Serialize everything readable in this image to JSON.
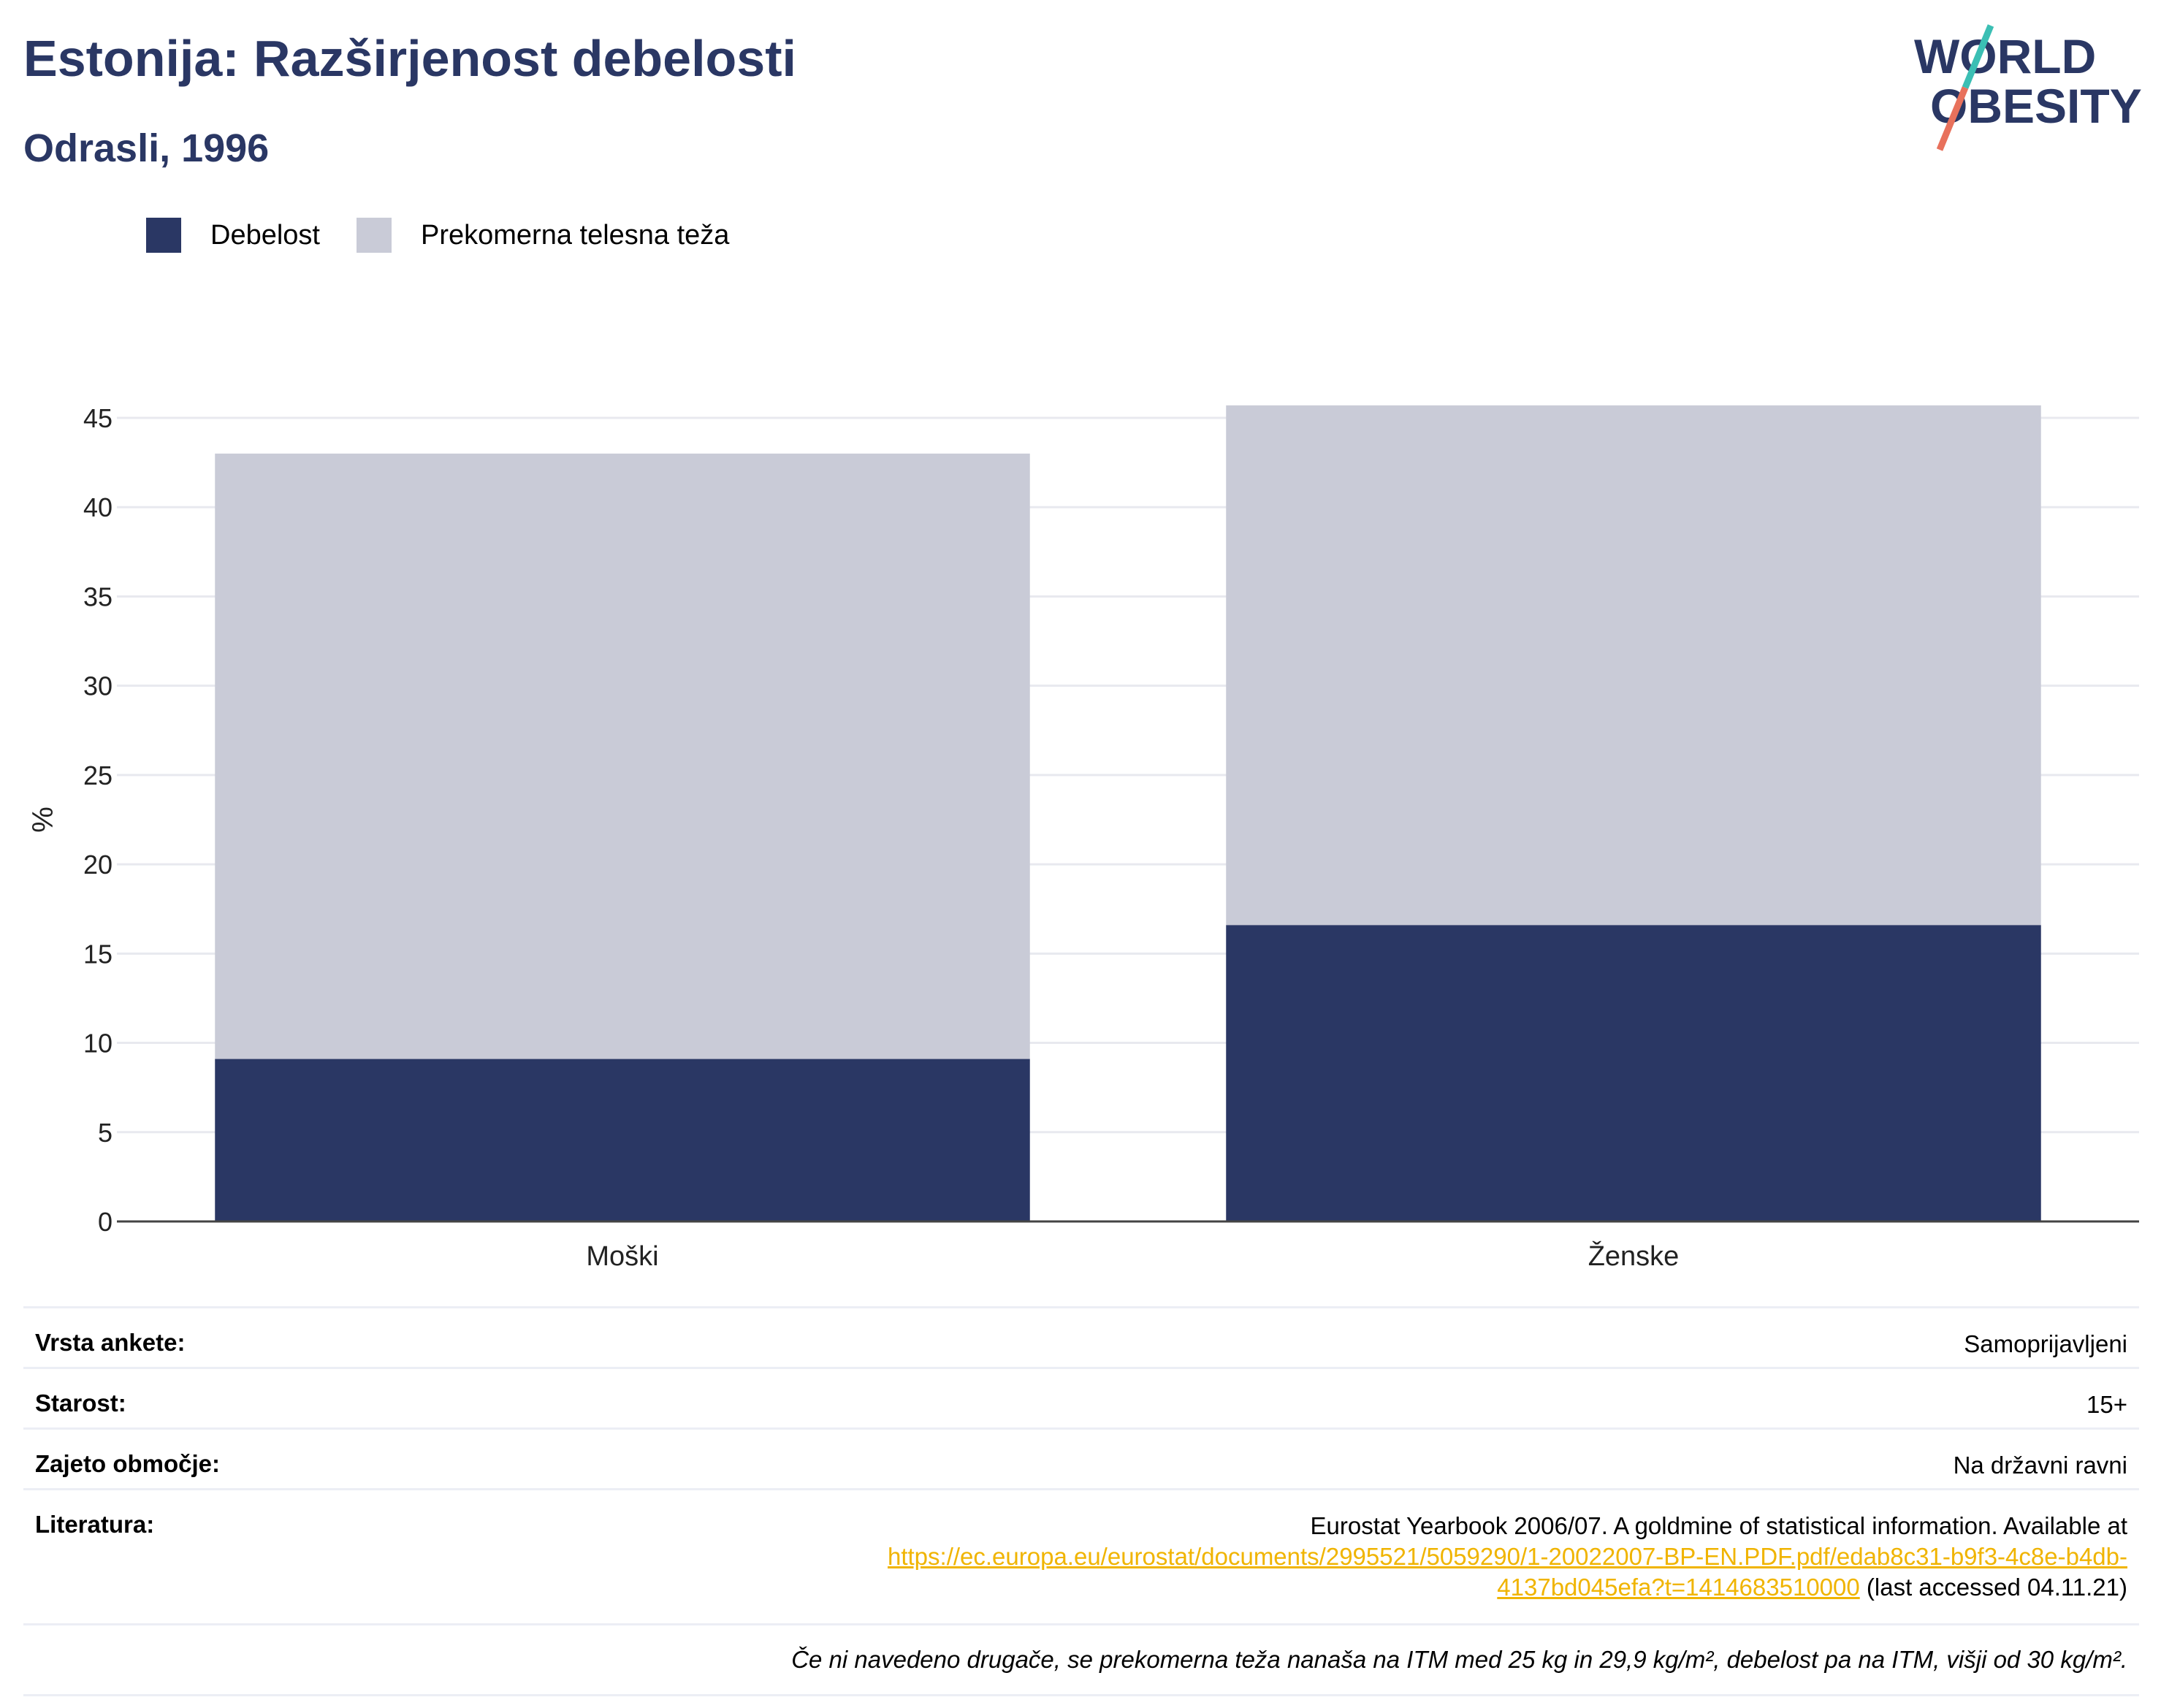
{
  "header": {
    "title": "Estonija: Razširjenost debelosti",
    "subtitle": "Odrasli, 1996",
    "logo_text": [
      "WORLD",
      "OBESITY"
    ]
  },
  "colors": {
    "obesity": "#2a3764",
    "overweight": "#c9cbd7",
    "title": "#2a3764",
    "logo_teal": "#3bbfb4",
    "logo_coral": "#e8715c",
    "link": "#f0b400"
  },
  "legend": [
    {
      "label": "Debelost",
      "color": "#2a3764"
    },
    {
      "label": "Prekomerna telesna teža",
      "color": "#c9cbd7"
    }
  ],
  "chart_data": {
    "type": "bar",
    "stacked": true,
    "categories": [
      "Moški",
      "Ženske"
    ],
    "series": [
      {
        "name": "Debelost",
        "values": [
          9.1,
          16.6
        ]
      },
      {
        "name": "Prekomerna telesna teža",
        "values": [
          33.9,
          29.1
        ]
      }
    ],
    "ylabel": "%",
    "ylim": [
      0,
      45
    ],
    "yticks": [
      0,
      5,
      10,
      15,
      20,
      25,
      30,
      35,
      40,
      45
    ],
    "grid": true,
    "legend_position": "top-left"
  },
  "info": {
    "survey_type": {
      "label": "Vrsta ankete:",
      "value": "Samoprijavljeni"
    },
    "age": {
      "label": "Starost:",
      "value": "15+"
    },
    "coverage": {
      "label": "Zajeto območje:",
      "value": "Na državni ravni"
    },
    "literature": {
      "label": "Literatura:",
      "text": "Eurostat Yearbook 2006/07. A goldmine of statistical information. Available at",
      "link_line1": "https://ec.europa.eu/eurostat/documents/2995521/5059290/1-20022007-BP-EN.PDF.pdf/edab8c31-b9f3-4c8e-b4db-",
      "link_line2": "4137bd045efa?t=1414683510000",
      "accessed": "(last accessed 04.11.21)"
    },
    "note": "Če ni navedeno drugače, se prekomerna teža nanaša na ITM med 25 kg in 29,9 kg/m², debelost pa na ITM, višji od 30 kg/m²."
  }
}
